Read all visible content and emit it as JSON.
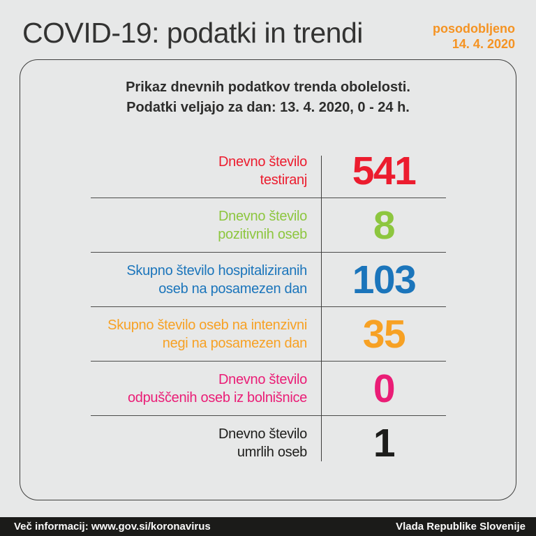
{
  "page": {
    "title": "COVID-19: podatki in trendi",
    "updated_label": "posodobljeno",
    "updated_date": "14. 4. 2020"
  },
  "card": {
    "header_line1": "Prikaz dnevnih podatkov trenda obolelosti.",
    "header_line2": "Podatki veljajo za dan: 13. 4. 2020, 0 - 24 h.",
    "rows": [
      {
        "label_line1": "Dnevno število",
        "label_line2": "testiranj",
        "value": "541",
        "color": "#ec1c2e"
      },
      {
        "label_line1": "Dnevno število",
        "label_line2": "pozitivnih oseb",
        "value": "8",
        "color": "#8dc63f"
      },
      {
        "label_line1": "Skupno število hospitaliziranih",
        "label_line2": "oseb na posamezen dan",
        "value": "103",
        "color": "#1b75bb"
      },
      {
        "label_line1": "Skupno število oseb na intenzivni",
        "label_line2": "negi na posamezen dan",
        "value": "35",
        "color": "#f7a124"
      },
      {
        "label_line1": "Dnevno število",
        "label_line2": "odpuščenih oseb iz bolnišnice",
        "value": "0",
        "color": "#ea1d76"
      },
      {
        "label_line1": "Dnevno število",
        "label_line2": "umrlih oseb",
        "value": "1",
        "color": "#1d1d1b"
      }
    ]
  },
  "footer": {
    "left": "Več informacij: www.gov.si/koronavirus",
    "right": "Vlada Republike Slovenije"
  },
  "colors": {
    "background": "#e7e8e8",
    "accent_orange": "#f59322",
    "footer_background": "#1b1b19",
    "line": "#3e3e3d",
    "title_text": "#333332",
    "header_text": "#2d2d2c"
  },
  "chart_data": {
    "type": "table",
    "title": "Prikaz dnevnih podatkov trenda obolelosti. Podatki veljajo za dan: 13. 4. 2020, 0 - 24 h.",
    "categories": [
      "Dnevno število testiranj",
      "Dnevno število pozitivnih oseb",
      "Skupno število hospitaliziranih oseb na posamezen dan",
      "Skupno število oseb na intenzivni negi na posamezen dan",
      "Dnevno število odpuščenih oseb iz bolnišnice",
      "Dnevno število umrlih oseb"
    ],
    "values": [
      541,
      8,
      103,
      35,
      0,
      1
    ]
  }
}
